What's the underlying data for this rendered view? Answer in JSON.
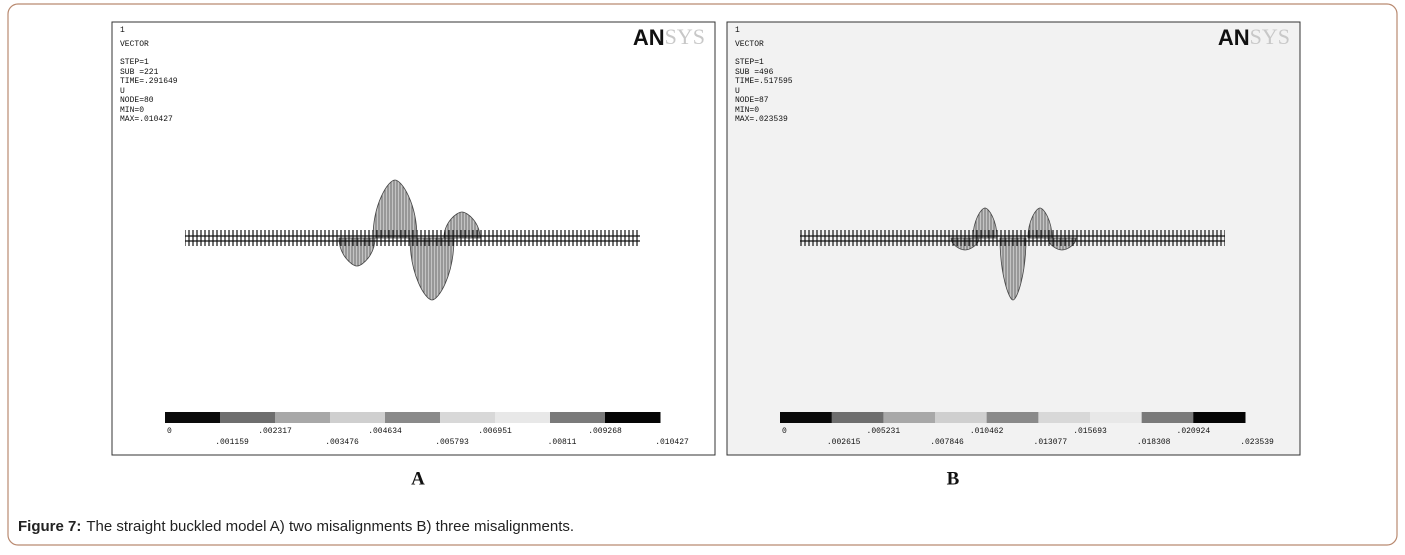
{
  "panels": [
    {
      "label": "A",
      "header_lines": [
        "1",
        "VECTOR",
        "STEP=1",
        "SUB =221",
        "TIME=.291649",
        "U",
        "NODE=80",
        "MIN=0",
        "MAX=.010427"
      ],
      "logo": {
        "bold": "AN",
        "light": "SYS"
      },
      "legend": {
        "top": [
          "0",
          ".002317",
          ".004634",
          ".006951",
          ".009268"
        ],
        "bottom": [
          ".001159",
          ".003476",
          ".005793",
          ".00811",
          ".010427"
        ]
      }
    },
    {
      "label": "B",
      "header_lines": [
        "1",
        "VECTOR",
        "STEP=1",
        "SUB =496",
        "TIME=.517595",
        "U",
        "NODE=87",
        "MIN=0",
        "MAX=.023539"
      ],
      "logo": {
        "bold": "AN",
        "light": "SYS"
      },
      "legend": {
        "top": [
          "0",
          ".005231",
          ".010462",
          ".015693",
          ".020924"
        ],
        "bottom": [
          ".002615",
          ".007846",
          ".013077",
          ".018308",
          ".023539"
        ]
      }
    }
  ],
  "caption": {
    "label": "Figure 7:",
    "text": "The straight buckled model A) two misalignments B) three misalignments."
  }
}
